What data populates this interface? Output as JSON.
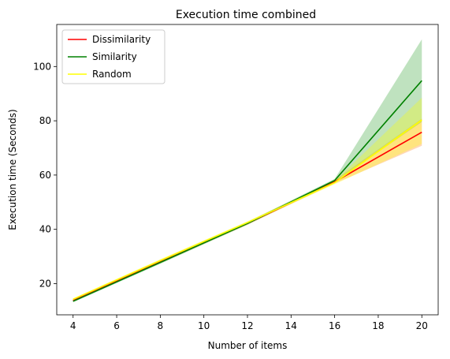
{
  "chart_data": {
    "type": "line",
    "title": "Execution time combined",
    "xlabel": "Number of items",
    "ylabel": "Execution time (Seconds)",
    "xlim": [
      3.25,
      20.75
    ],
    "ylim": [
      8.5,
      115.5
    ],
    "xticks": [
      4,
      6,
      8,
      10,
      12,
      14,
      16,
      18,
      20
    ],
    "yticks": [
      20,
      40,
      60,
      80,
      100
    ],
    "grid": false,
    "legend_position": "top-left",
    "x": [
      4,
      8,
      12,
      16,
      20
    ],
    "series": [
      {
        "name": "Dissimilarity",
        "color": "#ff0000",
        "band_color": "#ff7f0e",
        "values": [
          13.8,
          28.0,
          42.2,
          57.5,
          75.8
        ],
        "lower": [
          13.4,
          27.5,
          41.7,
          56.9,
          70.8
        ],
        "upper": [
          14.2,
          28.5,
          42.7,
          58.1,
          80.8
        ]
      },
      {
        "name": "Similarity",
        "color": "#008000",
        "band_color": "#2ca02c",
        "values": [
          13.5,
          27.8,
          42.2,
          58.0,
          94.8
        ],
        "lower": [
          13.1,
          27.3,
          41.7,
          57.4,
          79.6
        ],
        "upper": [
          13.9,
          28.3,
          42.7,
          58.6,
          110.0
        ]
      },
      {
        "name": "Random",
        "color": "#ffff00",
        "band_color": "#ffff00",
        "values": [
          14.2,
          28.5,
          42.5,
          57.2,
          80.3
        ],
        "lower": [
          13.8,
          28.0,
          42.0,
          56.6,
          71.5
        ],
        "upper": [
          14.6,
          29.0,
          43.0,
          57.8,
          88.5
        ]
      }
    ]
  }
}
